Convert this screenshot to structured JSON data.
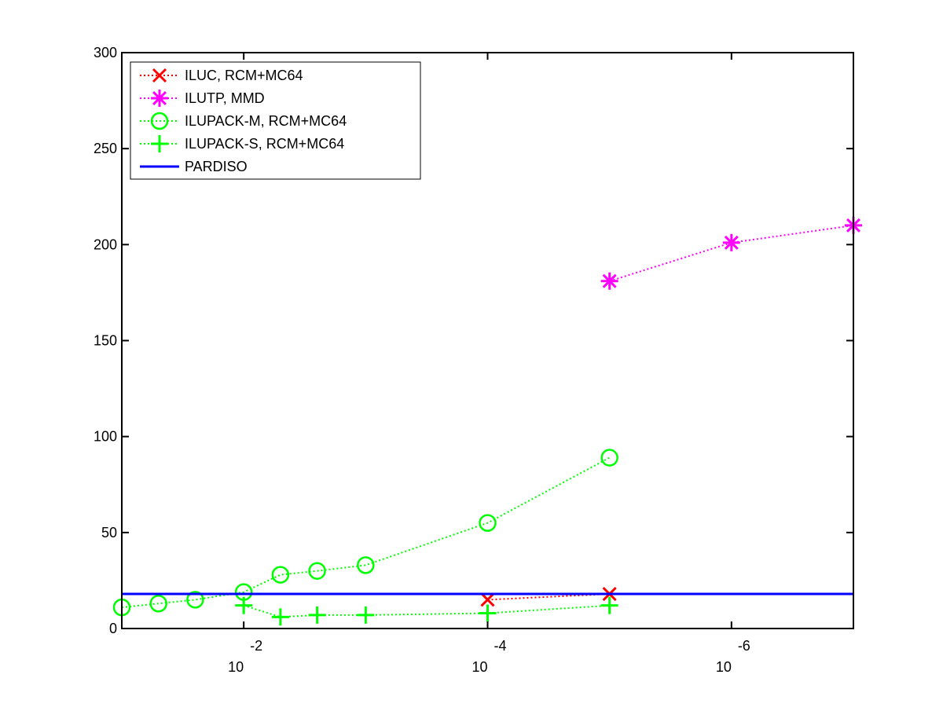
{
  "chart_data": {
    "type": "line",
    "title": "",
    "xlabel": "",
    "ylabel": "",
    "x_scale": "log",
    "x_reversed": true,
    "xlim": [
      0.1,
      1e-07
    ],
    "ylim": [
      0,
      300
    ],
    "grid": false,
    "legend_position": "top-left",
    "y_ticks": [
      0,
      50,
      100,
      150,
      200,
      250,
      300
    ],
    "x_ticks": [
      {
        "value": 0.01,
        "base": "10",
        "exponent": "-2"
      },
      {
        "value": 0.0001,
        "base": "10",
        "exponent": "-4"
      },
      {
        "value": 1e-06,
        "base": "10",
        "exponent": "-6"
      }
    ],
    "series": [
      {
        "name": "ILUC, RCM+MC64",
        "color": "#ff0000",
        "marker": "x",
        "line": "dotted",
        "points": [
          [
            0.0001,
            15
          ],
          [
            1e-05,
            18
          ]
        ]
      },
      {
        "name": "ILUTP, MMD",
        "color": "#ff00ff",
        "marker": "asterisk",
        "line": "dotted",
        "points": [
          [
            1e-05,
            181
          ],
          [
            1e-06,
            201
          ],
          [
            1e-07,
            210
          ]
        ]
      },
      {
        "name": "ILUPACK-M, RCM+MC64",
        "color": "#00ff00",
        "marker": "circle",
        "line": "dotted",
        "points": [
          [
            0.1,
            11
          ],
          [
            0.05,
            13
          ],
          [
            0.025,
            15
          ],
          [
            0.01,
            19
          ],
          [
            0.005,
            28
          ],
          [
            0.0025,
            30
          ],
          [
            0.001,
            33
          ],
          [
            0.0001,
            55
          ],
          [
            1e-05,
            89
          ]
        ]
      },
      {
        "name": "ILUPACK-S, RCM+MC64",
        "color": "#00ff00",
        "marker": "plus",
        "line": "dotted",
        "points": [
          [
            0.01,
            12
          ],
          [
            0.005,
            6
          ],
          [
            0.0025,
            7
          ],
          [
            0.001,
            7
          ],
          [
            0.0001,
            8
          ],
          [
            1e-05,
            12
          ]
        ]
      },
      {
        "name": "PARDISO",
        "color": "#0000ff",
        "marker": "none",
        "line": "solid",
        "points": [
          [
            0.1,
            18
          ],
          [
            1e-07,
            18
          ]
        ]
      }
    ]
  }
}
